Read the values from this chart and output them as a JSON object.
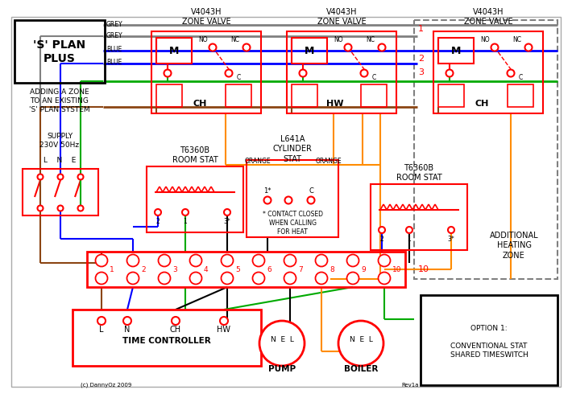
{
  "bg_color": "#ffffff",
  "red": "#ff0000",
  "blue": "#0000ff",
  "green": "#00aa00",
  "orange": "#ff8c00",
  "brown": "#8b4513",
  "grey": "#808080",
  "black": "#000000",
  "title": "'S' PLAN\nPLUS",
  "subtitle": "ADDING A ZONE\nTO AN EXISTING\n'S' PLAN SYSTEM",
  "supply": "SUPPLY\n230V 50Hz",
  "lne": "L    N    E",
  "zone_valve": "V4043H\nZONE VALVE",
  "ch": "CH",
  "hw": "HW",
  "room_stat": "T6360B\nROOM STAT",
  "cylinder_stat": "L641A\nCYLINDER\nSTAT",
  "time_ctrl": "TIME CONTROLLER",
  "pump": "PUMP",
  "boiler": "BOILER",
  "option1": "OPTION 1:\n\nCONVENTIONAL STAT\nSHARED TIMESWITCH",
  "additional": "ADDITIONAL\nHEATING\nZONE",
  "contact_note": "* CONTACT CLOSED\nWHEN CALLING\nFOR HEAT",
  "copyright": "(c) DannyOz 2009",
  "rev": "Rev1a"
}
